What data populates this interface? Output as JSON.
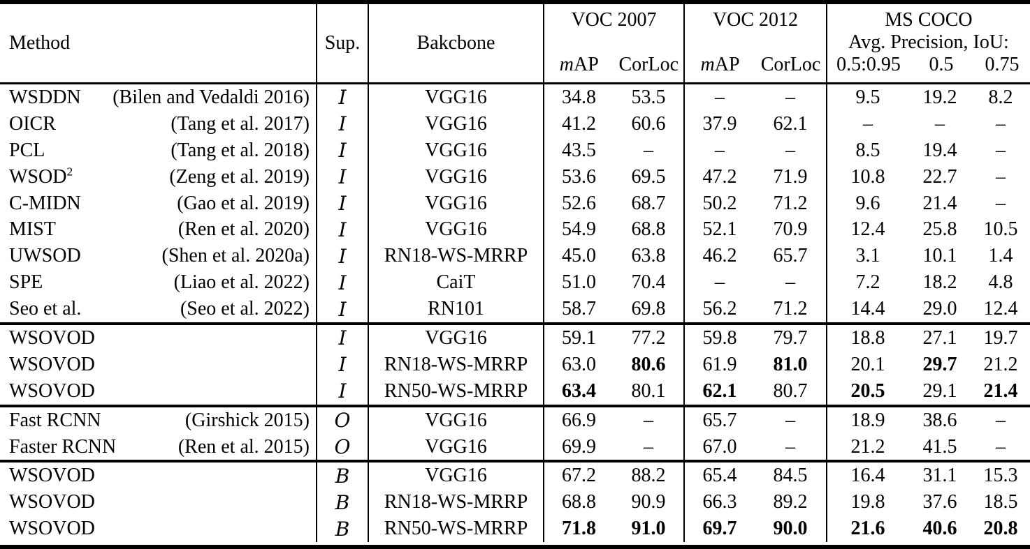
{
  "table": {
    "header": {
      "method": "Method",
      "sup": "Sup.",
      "backbone": "Bakcbone",
      "groups": [
        {
          "title": "VOC 2007",
          "sub": [
            "mAP",
            "CorLoc"
          ]
        },
        {
          "title": "VOC 2012",
          "sub": [
            "mAP",
            "CorLoc"
          ]
        },
        {
          "title": "MS COCO",
          "subtitle": "Avg. Precision, IoU:",
          "sub": [
            "0.5:0.95",
            "0.5",
            "0.75"
          ]
        }
      ]
    },
    "sections": [
      {
        "rows": [
          {
            "method": "WSDDN",
            "cite": "(Bilen and Vedaldi 2016)",
            "sup": "I",
            "backbone": "VGG16",
            "vals": [
              "34.8",
              "53.5",
              "–",
              "–",
              "9.5",
              "19.2",
              "8.2"
            ],
            "bold": []
          },
          {
            "method": "OICR",
            "cite": "(Tang et al. 2017)",
            "sup": "I",
            "backbone": "VGG16",
            "vals": [
              "41.2",
              "60.6",
              "37.9",
              "62.1",
              "–",
              "–",
              "–"
            ],
            "bold": []
          },
          {
            "method": "PCL",
            "cite": "(Tang et al. 2018)",
            "sup": "I",
            "backbone": "VGG16",
            "vals": [
              "43.5",
              "–",
              "–",
              "–",
              "8.5",
              "19.4",
              "–"
            ],
            "bold": []
          },
          {
            "method": "WSOD",
            "method_sup": "2",
            "cite": "(Zeng et al. 2019)",
            "sup": "I",
            "backbone": "VGG16",
            "vals": [
              "53.6",
              "69.5",
              "47.2",
              "71.9",
              "10.8",
              "22.7",
              "–"
            ],
            "bold": []
          },
          {
            "method": "C-MIDN",
            "cite": "(Gao et al. 2019)",
            "sup": "I",
            "backbone": "VGG16",
            "vals": [
              "52.6",
              "68.7",
              "50.2",
              "71.2",
              "9.6",
              "21.4",
              "–"
            ],
            "bold": []
          },
          {
            "method": "MIST",
            "cite": "(Ren et al. 2020)",
            "sup": "I",
            "backbone": "VGG16",
            "vals": [
              "54.9",
              "68.8",
              "52.1",
              "70.9",
              "12.4",
              "25.8",
              "10.5"
            ],
            "bold": []
          },
          {
            "method": "UWSOD",
            "cite": "(Shen et al. 2020a)",
            "sup": "I",
            "backbone": "RN18-WS-MRRP",
            "vals": [
              "45.0",
              "63.8",
              "46.2",
              "65.7",
              "3.1",
              "10.1",
              "1.4"
            ],
            "bold": []
          },
          {
            "method": "SPE",
            "cite": "(Liao et al. 2022)",
            "sup": "I",
            "backbone": "CaiT",
            "vals": [
              "51.0",
              "70.4",
              "–",
              "–",
              "7.2",
              "18.2",
              "4.8"
            ],
            "bold": []
          },
          {
            "method": "Seo et al.",
            "cite": "(Seo et al. 2022)",
            "sup": "I",
            "backbone": "RN101",
            "vals": [
              "58.7",
              "69.8",
              "56.2",
              "71.2",
              "14.4",
              "29.0",
              "12.4"
            ],
            "bold": []
          }
        ]
      },
      {
        "rows": [
          {
            "method": "WSOVOD",
            "cite": "",
            "sup": "I",
            "backbone": "VGG16",
            "vals": [
              "59.1",
              "77.2",
              "59.8",
              "79.7",
              "18.8",
              "27.1",
              "19.7"
            ],
            "bold": []
          },
          {
            "method": "WSOVOD",
            "cite": "",
            "sup": "I",
            "backbone": "RN18-WS-MRRP",
            "vals": [
              "63.0",
              "80.6",
              "61.9",
              "81.0",
              "20.1",
              "29.7",
              "21.2"
            ],
            "bold": [
              1,
              3,
              5
            ]
          },
          {
            "method": "WSOVOD",
            "cite": "",
            "sup": "I",
            "backbone": "RN50-WS-MRRP",
            "vals": [
              "63.4",
              "80.1",
              "62.1",
              "80.7",
              "20.5",
              "29.1",
              "21.4"
            ],
            "bold": [
              0,
              2,
              4,
              6
            ]
          }
        ]
      },
      {
        "rows": [
          {
            "method": "Fast RCNN",
            "cite": "(Girshick 2015)",
            "sup": "O",
            "backbone": "VGG16",
            "vals": [
              "66.9",
              "–",
              "65.7",
              "–",
              "18.9",
              "38.6",
              "–"
            ],
            "bold": []
          },
          {
            "method": "Faster RCNN",
            "cite": "(Ren et al. 2015)",
            "sup": "O",
            "backbone": "VGG16",
            "vals": [
              "69.9",
              "–",
              "67.0",
              "–",
              "21.2",
              "41.5",
              "–"
            ],
            "bold": []
          }
        ]
      },
      {
        "rows": [
          {
            "method": "WSOVOD",
            "cite": "",
            "sup": "B",
            "backbone": "VGG16",
            "vals": [
              "67.2",
              "88.2",
              "65.4",
              "84.5",
              "16.4",
              "31.1",
              "15.3"
            ],
            "bold": []
          },
          {
            "method": "WSOVOD",
            "cite": "",
            "sup": "B",
            "backbone": "RN18-WS-MRRP",
            "vals": [
              "68.8",
              "90.9",
              "66.3",
              "89.2",
              "19.8",
              "37.6",
              "18.5"
            ],
            "bold": []
          },
          {
            "method": "WSOVOD",
            "cite": "",
            "sup": "B",
            "backbone": "RN50-WS-MRRP",
            "vals": [
              "71.8",
              "91.0",
              "69.7",
              "90.0",
              "21.6",
              "40.6",
              "20.8"
            ],
            "bold": [
              0,
              1,
              2,
              3,
              4,
              5,
              6
            ]
          }
        ]
      }
    ]
  }
}
